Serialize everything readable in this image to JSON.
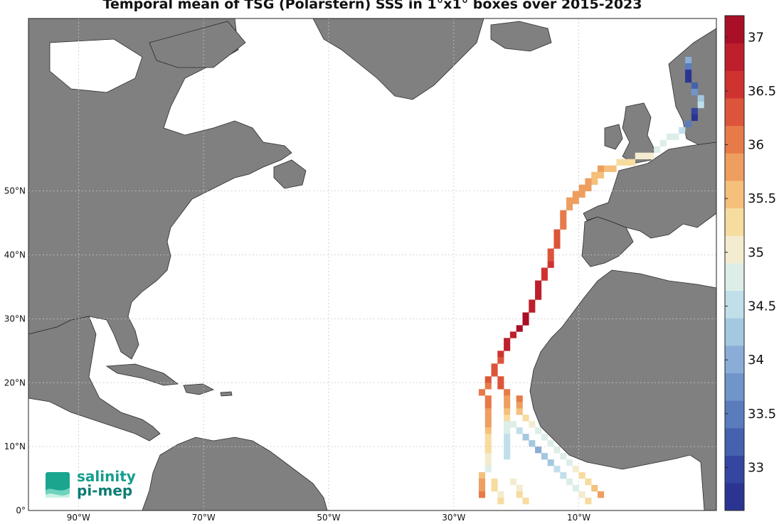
{
  "title": "Temporal mean of TSG (Polarstern) SSS in 1°x1° boxes over 2015-2023",
  "map": {
    "lon_range": [
      -98,
      12
    ],
    "lat_range": [
      0,
      77
    ],
    "lon_ticks": [
      {
        "value": -90,
        "label": "90°W"
      },
      {
        "value": -70,
        "label": "70°W"
      },
      {
        "value": -50,
        "label": "50°W"
      },
      {
        "value": -30,
        "label": "30°W"
      },
      {
        "value": -10,
        "label": "10°W"
      }
    ],
    "lat_ticks": [
      {
        "value": 0,
        "label": "0°"
      },
      {
        "value": 10,
        "label": "10°N"
      },
      {
        "value": 20,
        "label": "20°N"
      },
      {
        "value": 30,
        "label": "30°N"
      },
      {
        "value": 40,
        "label": "40°N"
      },
      {
        "value": 50,
        "label": "50°N"
      }
    ],
    "grid": true,
    "land_color": "#808080",
    "ocean_color": "#ffffff"
  },
  "colorbar": {
    "min": 32.6,
    "max": 37.2,
    "step": 0.2,
    "ticks": [
      "33",
      "33.5",
      "34",
      "34.5",
      "35",
      "35.5",
      "36",
      "36.5",
      "37"
    ],
    "colors": [
      "#2b3591",
      "#3446a0",
      "#4661ae",
      "#5a7cbd",
      "#6f95c9",
      "#89add6",
      "#a4c8e0",
      "#c1dfea",
      "#ddeee8",
      "#f3ecd0",
      "#f7dca0",
      "#f4c07c",
      "#ee9e5e",
      "#e67a49",
      "#dc553a",
      "#cf3330",
      "#bd1f2c",
      "#a90f27"
    ]
  },
  "chart_data": {
    "type": "heatmap",
    "title": "Temporal mean of TSG (Polarstern) SSS in 1°x1° boxes over 2015-2023",
    "units": "SSS",
    "cells": [
      [
        7,
        70,
        34.0
      ],
      [
        7,
        69,
        33.4
      ],
      [
        7,
        68,
        32.8
      ],
      [
        7,
        67,
        32.8
      ],
      [
        8,
        66,
        33.2
      ],
      [
        8,
        65,
        33.8
      ],
      [
        9,
        64,
        34.2
      ],
      [
        9,
        63,
        34.5
      ],
      [
        8,
        62,
        33.0
      ],
      [
        8,
        61,
        32.8
      ],
      [
        7,
        60,
        33.6
      ],
      [
        6,
        59,
        34.6
      ],
      [
        5,
        58,
        34.9
      ],
      [
        4,
        58,
        34.8
      ],
      [
        3,
        57,
        34.7
      ],
      [
        2,
        56,
        34.9
      ],
      [
        1,
        55,
        35.0
      ],
      [
        0,
        55,
        35.0
      ],
      [
        -1,
        55,
        35.1
      ],
      [
        -2,
        54,
        35.2
      ],
      [
        -3,
        54,
        35.2
      ],
      [
        -4,
        54,
        35.3
      ],
      [
        -5,
        53,
        35.5
      ],
      [
        -6,
        53,
        35.6
      ],
      [
        -7,
        53,
        35.7
      ],
      [
        -7,
        52,
        35.6
      ],
      [
        -8,
        52,
        35.6
      ],
      [
        -8,
        51,
        35.5
      ],
      [
        -9,
        51,
        35.7
      ],
      [
        -9,
        50,
        35.7
      ],
      [
        -10,
        50,
        35.8
      ],
      [
        -10,
        49,
        35.7
      ],
      [
        -11,
        49,
        35.8
      ],
      [
        -11,
        48,
        35.8
      ],
      [
        -12,
        48,
        35.9
      ],
      [
        -12,
        47,
        35.9
      ],
      [
        -13,
        46,
        36.0
      ],
      [
        -13,
        45,
        36.0
      ],
      [
        -13,
        44,
        36.1
      ],
      [
        -14,
        43,
        36.2
      ],
      [
        -14,
        42,
        36.2
      ],
      [
        -14,
        41,
        36.3
      ],
      [
        -15,
        40,
        36.3
      ],
      [
        -15,
        39,
        36.4
      ],
      [
        -15,
        38,
        36.5
      ],
      [
        -16,
        37,
        36.6
      ],
      [
        -16,
        36,
        36.6
      ],
      [
        -17,
        35,
        36.7
      ],
      [
        -17,
        34,
        36.8
      ],
      [
        -17,
        33,
        36.8
      ],
      [
        -18,
        32,
        36.9
      ],
      [
        -18,
        31,
        36.9
      ],
      [
        -19,
        30,
        37.0
      ],
      [
        -19,
        29,
        37.0
      ],
      [
        -20,
        28,
        37.0
      ],
      [
        -21,
        27,
        36.9
      ],
      [
        -22,
        26,
        36.8
      ],
      [
        -22,
        25,
        36.7
      ],
      [
        -23,
        24,
        36.5
      ],
      [
        -23,
        23,
        36.4
      ],
      [
        -24,
        22,
        36.3
      ],
      [
        -24,
        21,
        36.2
      ],
      [
        -25,
        20,
        36.2
      ],
      [
        -25,
        19,
        36.1
      ],
      [
        -26,
        18,
        36.0
      ],
      [
        -25,
        17,
        36.0
      ],
      [
        -25,
        16,
        36.0
      ],
      [
        -25,
        15,
        35.9
      ],
      [
        -25,
        14,
        35.8
      ],
      [
        -25,
        13,
        35.8
      ],
      [
        -25,
        12,
        35.6
      ],
      [
        -25,
        11,
        35.4
      ],
      [
        -25,
        10,
        35.3
      ],
      [
        -25,
        9,
        35.2
      ],
      [
        -25,
        8,
        35.1
      ],
      [
        -25,
        7,
        35.0
      ],
      [
        -25,
        6,
        34.8
      ],
      [
        -23,
        20,
        36.3
      ],
      [
        -23,
        19,
        36.2
      ],
      [
        -22,
        18,
        36.0
      ],
      [
        -22,
        17,
        35.9
      ],
      [
        -22,
        16,
        35.7
      ],
      [
        -22,
        15,
        35.5
      ],
      [
        -22,
        14,
        35.2
      ],
      [
        -22,
        13,
        34.9
      ],
      [
        -22,
        12,
        34.8
      ],
      [
        -22,
        11,
        34.6
      ],
      [
        -22,
        10,
        34.5
      ],
      [
        -22,
        9,
        34.5
      ],
      [
        -22,
        8,
        34.4
      ],
      [
        -21,
        13,
        34.8
      ],
      [
        -20,
        12,
        34.5
      ],
      [
        -19,
        11,
        34.3
      ],
      [
        -18,
        10,
        34.2
      ],
      [
        -17,
        9,
        34.1
      ],
      [
        -16,
        8,
        34.2
      ],
      [
        -15,
        7,
        34.3
      ],
      [
        -14,
        6,
        34.4
      ],
      [
        -13,
        5,
        34.5
      ],
      [
        -12,
        4,
        34.7
      ],
      [
        -11,
        3,
        34.9
      ],
      [
        -10,
        2,
        35.1
      ],
      [
        -9,
        1,
        35.3
      ],
      [
        -20,
        17,
        36.1
      ],
      [
        -20,
        16,
        35.9
      ],
      [
        -20,
        15,
        35.6
      ],
      [
        -19,
        14,
        35.3
      ],
      [
        -18,
        13,
        35.1
      ],
      [
        -17,
        12,
        34.9
      ],
      [
        -16,
        11,
        34.8
      ],
      [
        -15,
        10,
        34.7
      ],
      [
        -14,
        9,
        34.7
      ],
      [
        -13,
        8,
        34.8
      ],
      [
        -12,
        7,
        34.9
      ],
      [
        -11,
        6,
        35.0
      ],
      [
        -10,
        5,
        35.2
      ],
      [
        -9,
        4,
        35.3
      ],
      [
        -8,
        3,
        35.5
      ],
      [
        -7,
        2,
        35.8
      ],
      [
        -26,
        5,
        35.6
      ],
      [
        -26,
        4,
        35.8
      ],
      [
        -26,
        3,
        35.9
      ],
      [
        -26,
        2,
        36.0
      ],
      [
        -24,
        4,
        35.4
      ],
      [
        -24,
        3,
        35.2
      ],
      [
        -23,
        2,
        35.1
      ],
      [
        -23,
        1,
        35.3
      ],
      [
        -21,
        4,
        35.0
      ],
      [
        -20,
        3,
        35.1
      ],
      [
        -20,
        2,
        35.3
      ],
      [
        -19,
        1,
        35.4
      ]
    ]
  },
  "logo": {
    "line1": "salinity",
    "line2": "pi-mep"
  }
}
